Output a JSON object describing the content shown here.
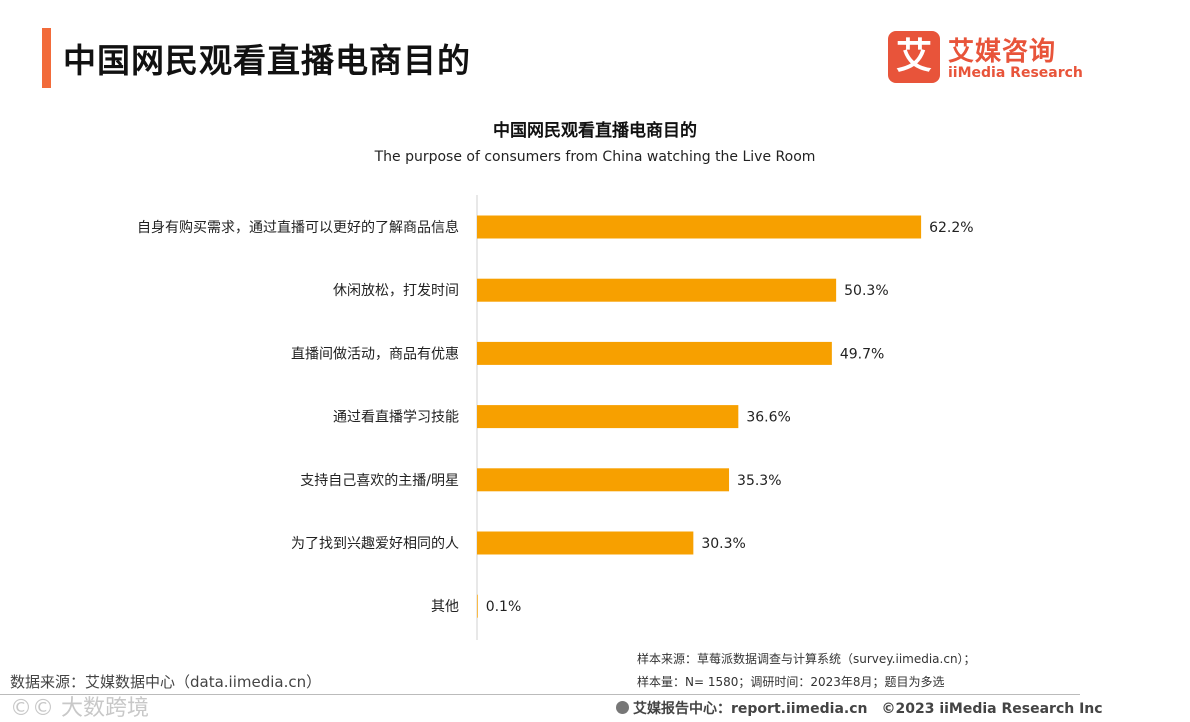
{
  "header": {
    "title": "中国网民观看直播电商目的",
    "accent_color": "#F26B3A"
  },
  "logo": {
    "mark_char": "艾",
    "name_cn": "艾媒咨询",
    "name_en": "iiMedia Research",
    "color": "#E8543A"
  },
  "chart_data": {
    "type": "bar",
    "orientation": "horizontal",
    "title": "中国网民观看直播电商目的",
    "subtitle": "The purpose of consumers from China watching the Live Room",
    "categories": [
      "自身有购买需求，通过直播可以更好的了解商品信息",
      "休闲放松，打发时间",
      "直播间做活动，商品有优惠",
      "通过看直播学习技能",
      "支持自己喜欢的主播/明星",
      "为了找到兴趣爱好相同的人",
      "其他"
    ],
    "values": [
      62.2,
      50.3,
      49.7,
      36.6,
      35.3,
      30.3,
      0.1
    ],
    "value_labels": [
      "62.2%",
      "50.3%",
      "49.7%",
      "36.6%",
      "35.3%",
      "30.3%",
      "0.1%"
    ],
    "unit": "%",
    "xlim": [
      0,
      70
    ],
    "bar_color": "#F7A000",
    "grid": false,
    "legend": false
  },
  "notes": {
    "sample_source": "样本来源：草莓派数据调查与计算系统（survey.iimedia.cn）；",
    "sample_size": "样本量：N= 1580；调研时间：2023年8月；题目为多选",
    "data_source": "数据来源：艾媒数据中心（data.iimedia.cn）"
  },
  "footer": {
    "watermark": "©© 大数跨境",
    "report_center": "艾媒报告中心：report.iimedia.cn",
    "copyright": "©2023  iiMedia Research  Inc"
  }
}
